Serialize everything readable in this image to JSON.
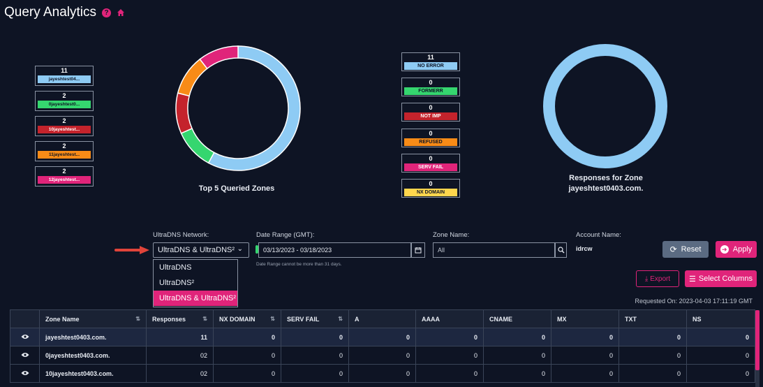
{
  "header": {
    "title": "Query Analytics"
  },
  "top_zones": {
    "caption": "Top 5 Queried Zones",
    "items": [
      {
        "count": "11",
        "label": "jayeshtest04...",
        "color": "#8ecbf4",
        "text_color": "#0e1424"
      },
      {
        "count": "2",
        "label": "0jayeshtest0...",
        "color": "#35d66f",
        "text_color": "#0e1424"
      },
      {
        "count": "2",
        "label": "10jayeshtest...",
        "color": "#c4232c",
        "text_color": "#ffffff"
      },
      {
        "count": "2",
        "label": "11jayeshtest...",
        "color": "#f88b17",
        "text_color": "#0e1424"
      },
      {
        "count": "2",
        "label": "12jayeshtest...",
        "color": "#e0247a",
        "text_color": "#ffffff"
      }
    ]
  },
  "responses": {
    "caption_line1": "Responses for Zone",
    "caption_line2": "jayeshtest0403.com.",
    "items": [
      {
        "count": "11",
        "label": "NO ERROR",
        "color": "#8ecbf4",
        "text_color": "#0e1424"
      },
      {
        "count": "0",
        "label": "FORMERR",
        "color": "#35d66f",
        "text_color": "#0e1424"
      },
      {
        "count": "0",
        "label": "NOT IMP",
        "color": "#c4232c",
        "text_color": "#ffffff"
      },
      {
        "count": "0",
        "label": "REFUSED",
        "color": "#f88b17",
        "text_color": "#0e1424"
      },
      {
        "count": "0",
        "label": "SERV FAIL",
        "color": "#e0247a",
        "text_color": "#ffffff"
      },
      {
        "count": "0",
        "label": "NX DOMAIN",
        "color": "#ffd64d",
        "text_color": "#0e1424"
      }
    ]
  },
  "filters": {
    "network_label": "UltraDNS Network:",
    "network_value": "UltraDNS & UltraDNS²",
    "network_options": [
      "UltraDNS",
      "UltraDNS²",
      "UltraDNS & UltraDNS²"
    ],
    "date_label": "Date Range (GMT):",
    "date_value": "03/13/2023 - 03/18/2023",
    "date_hint": "Date Range cannot be more than 31 days.",
    "zone_label": "Zone Name:",
    "zone_placeholder": "All",
    "account_label": "Account Name:",
    "account_value": "idrcw"
  },
  "actions": {
    "reset": "Reset",
    "apply": "Apply",
    "export": "Export",
    "select_columns": "Select Columns",
    "requested_on": "Requested On: 2023-04-03 17:11:19 GMT"
  },
  "table": {
    "columns": [
      "Zone Name",
      "Responses",
      "NX DOMAIN",
      "SERV FAIL",
      "A",
      "AAAA",
      "CNAME",
      "MX",
      "TXT",
      "NS"
    ],
    "rows": [
      {
        "zone": "jayeshtest0403.com.",
        "values": [
          "11",
          "0",
          "0",
          "0",
          "0",
          "0",
          "0",
          "0",
          "0"
        ]
      },
      {
        "zone": "0jayeshtest0403.com.",
        "values": [
          "02",
          "0",
          "0",
          "0",
          "0",
          "0",
          "0",
          "0",
          "0"
        ]
      },
      {
        "zone": "10jayeshtest0403.com.",
        "values": [
          "02",
          "0",
          "0",
          "0",
          "0",
          "0",
          "0",
          "0",
          "0"
        ]
      }
    ]
  },
  "chart_data": [
    {
      "type": "pie",
      "title": "Top 5 Queried Zones",
      "categories": [
        "jayeshtest04...",
        "0jayeshtest0...",
        "10jayeshtest...",
        "11jayeshtest...",
        "12jayeshtest..."
      ],
      "values": [
        11,
        2,
        2,
        2,
        2
      ],
      "colors": [
        "#8ecbf4",
        "#35d66f",
        "#c4232c",
        "#f88b17",
        "#e0247a"
      ]
    },
    {
      "type": "pie",
      "title": "Responses for Zone jayeshtest0403.com.",
      "categories": [
        "NO ERROR",
        "FORMERR",
        "NOT IMP",
        "REFUSED",
        "SERV FAIL",
        "NX DOMAIN"
      ],
      "values": [
        11,
        0,
        0,
        0,
        0,
        0
      ],
      "colors": [
        "#8ecbf4",
        "#35d66f",
        "#c4232c",
        "#f88b17",
        "#e0247a",
        "#ffd64d"
      ]
    }
  ]
}
